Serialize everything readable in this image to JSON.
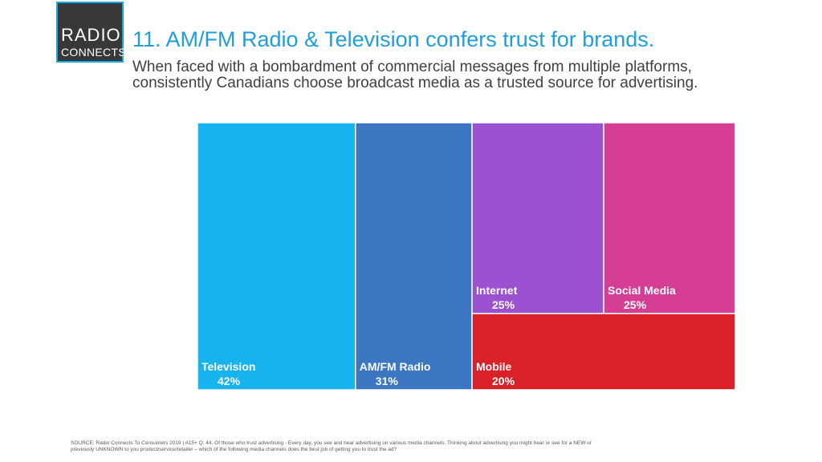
{
  "logo": {
    "line1": "RADIO",
    "line2": "CONNECTS"
  },
  "slide": {
    "title": "11. AM/FM Radio & Television confers trust for brands.",
    "subtitle": "When faced with a bombardment of commercial messages from multiple platforms, consistently Canadians choose broadcast media as a trusted source for advertising.",
    "source": "SOURCE:  Radio Connects To Consumers 2019 | A15+  Q: 44. Of those who trust advertising - Every day, you see and hear advertising on various media channels.  Thinking about advertising you might hear or see for a NEW or previously UNKNOWN to you product/service/retailer – which of the following media channels does the best job of getting you to trust the ad?"
  },
  "chart_data": {
    "type": "treemap",
    "unit": "%",
    "values": [
      {
        "label": "Television",
        "value": 42,
        "display": "42%",
        "color": "#17b3ef"
      },
      {
        "label": "AM/FM Radio",
        "value": 31,
        "display": "31%",
        "color": "#3c76c2"
      },
      {
        "label": "Internet",
        "value": 25,
        "display": "25%",
        "color": "#9b51d0"
      },
      {
        "label": "Social Media",
        "value": 25,
        "display": "25%",
        "color": "#d63e96"
      },
      {
        "label": "Mobile",
        "value": 20,
        "display": "20%",
        "color": "#db2128"
      }
    ]
  }
}
